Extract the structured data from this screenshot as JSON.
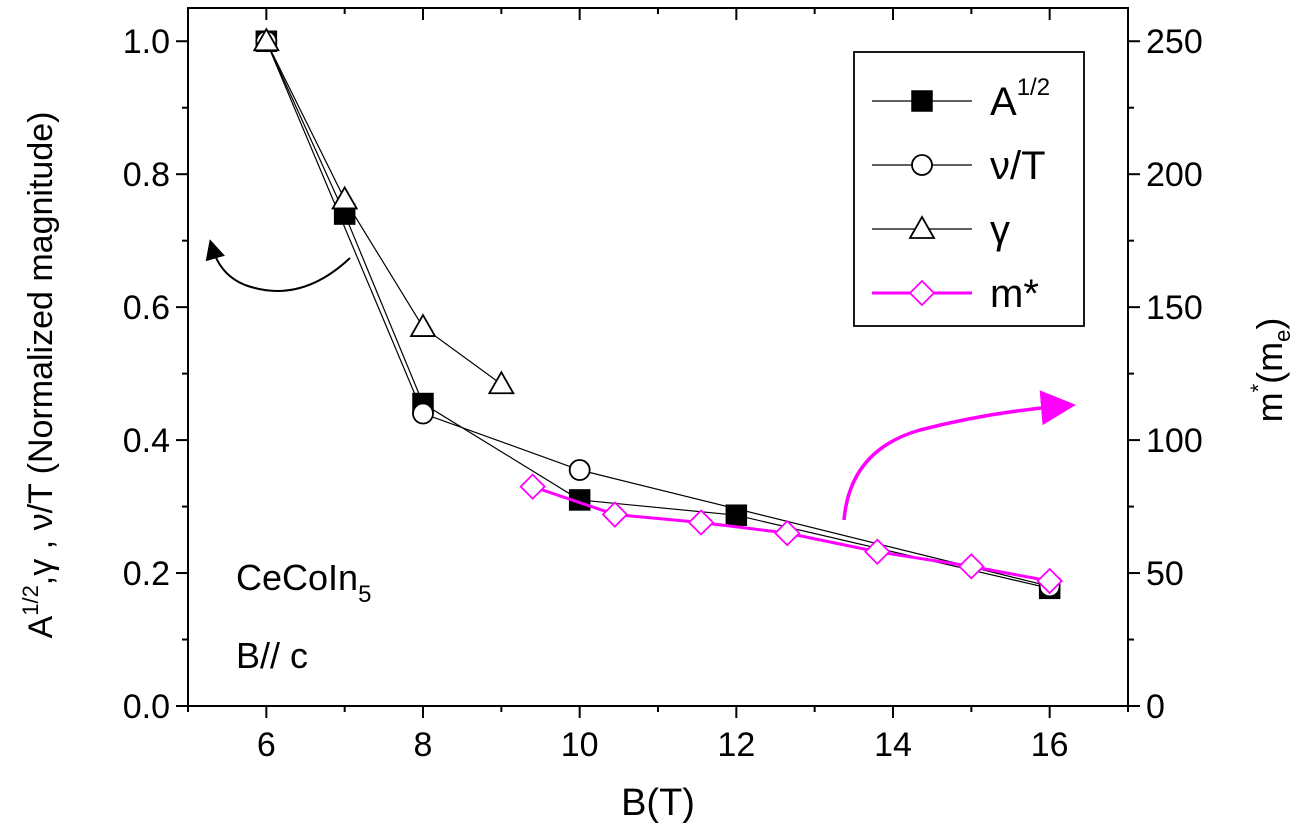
{
  "chart_data": {
    "type": "line",
    "xlabel": "B(T)",
    "ylabel_left": {
      "main": "A",
      "sup": "1/2",
      "rest": ",γ , ν/T (Normalized magnitude)"
    },
    "ylabel_right": {
      "main": "m",
      "sup": "*",
      "rest": "(m",
      "sub": "e",
      "close": ")"
    },
    "xlim": [
      5,
      17
    ],
    "ylim_left": [
      0,
      1.05
    ],
    "ylim_right": [
      0,
      262.5
    ],
    "x_ticks": [
      "6",
      "8",
      "10",
      "12",
      "14",
      "16"
    ],
    "y_ticks_left": [
      "0.0",
      "0.2",
      "0.4",
      "0.6",
      "0.8",
      "1.0"
    ],
    "y_ticks_right": [
      "0",
      "50",
      "100",
      "150",
      "200",
      "250"
    ],
    "series": [
      {
        "name": "A",
        "name_sup": "1/2",
        "marker": "filled-square",
        "color": "#000000",
        "axis": "left",
        "x": [
          6,
          7,
          8,
          10,
          12,
          16
        ],
        "y": [
          1.0,
          0.74,
          0.455,
          0.31,
          0.287,
          0.177
        ]
      },
      {
        "name": "ν/T",
        "marker": "open-circle",
        "color": "#000000",
        "axis": "left",
        "x": [
          6,
          8,
          10,
          16
        ],
        "y": [
          1.0,
          0.44,
          0.355,
          0.18
        ]
      },
      {
        "name": "γ",
        "marker": "open-triangle",
        "color": "#000000",
        "axis": "left",
        "x": [
          6,
          7,
          8,
          9
        ],
        "y": [
          1.0,
          0.762,
          0.57,
          0.484
        ]
      },
      {
        "name": "m*",
        "marker": "open-diamond",
        "color": "#ff00ff",
        "axis": "right",
        "x": [
          9.4,
          10.45,
          11.55,
          12.65,
          13.8,
          15.0,
          16.0
        ],
        "y": [
          82.5,
          72,
          69,
          65,
          58,
          52.5,
          47
        ]
      }
    ],
    "annotations": {
      "sample": {
        "main": "CeCoIn",
        "sub": "5"
      },
      "field": "B// c"
    },
    "legend_position": "top-right"
  }
}
